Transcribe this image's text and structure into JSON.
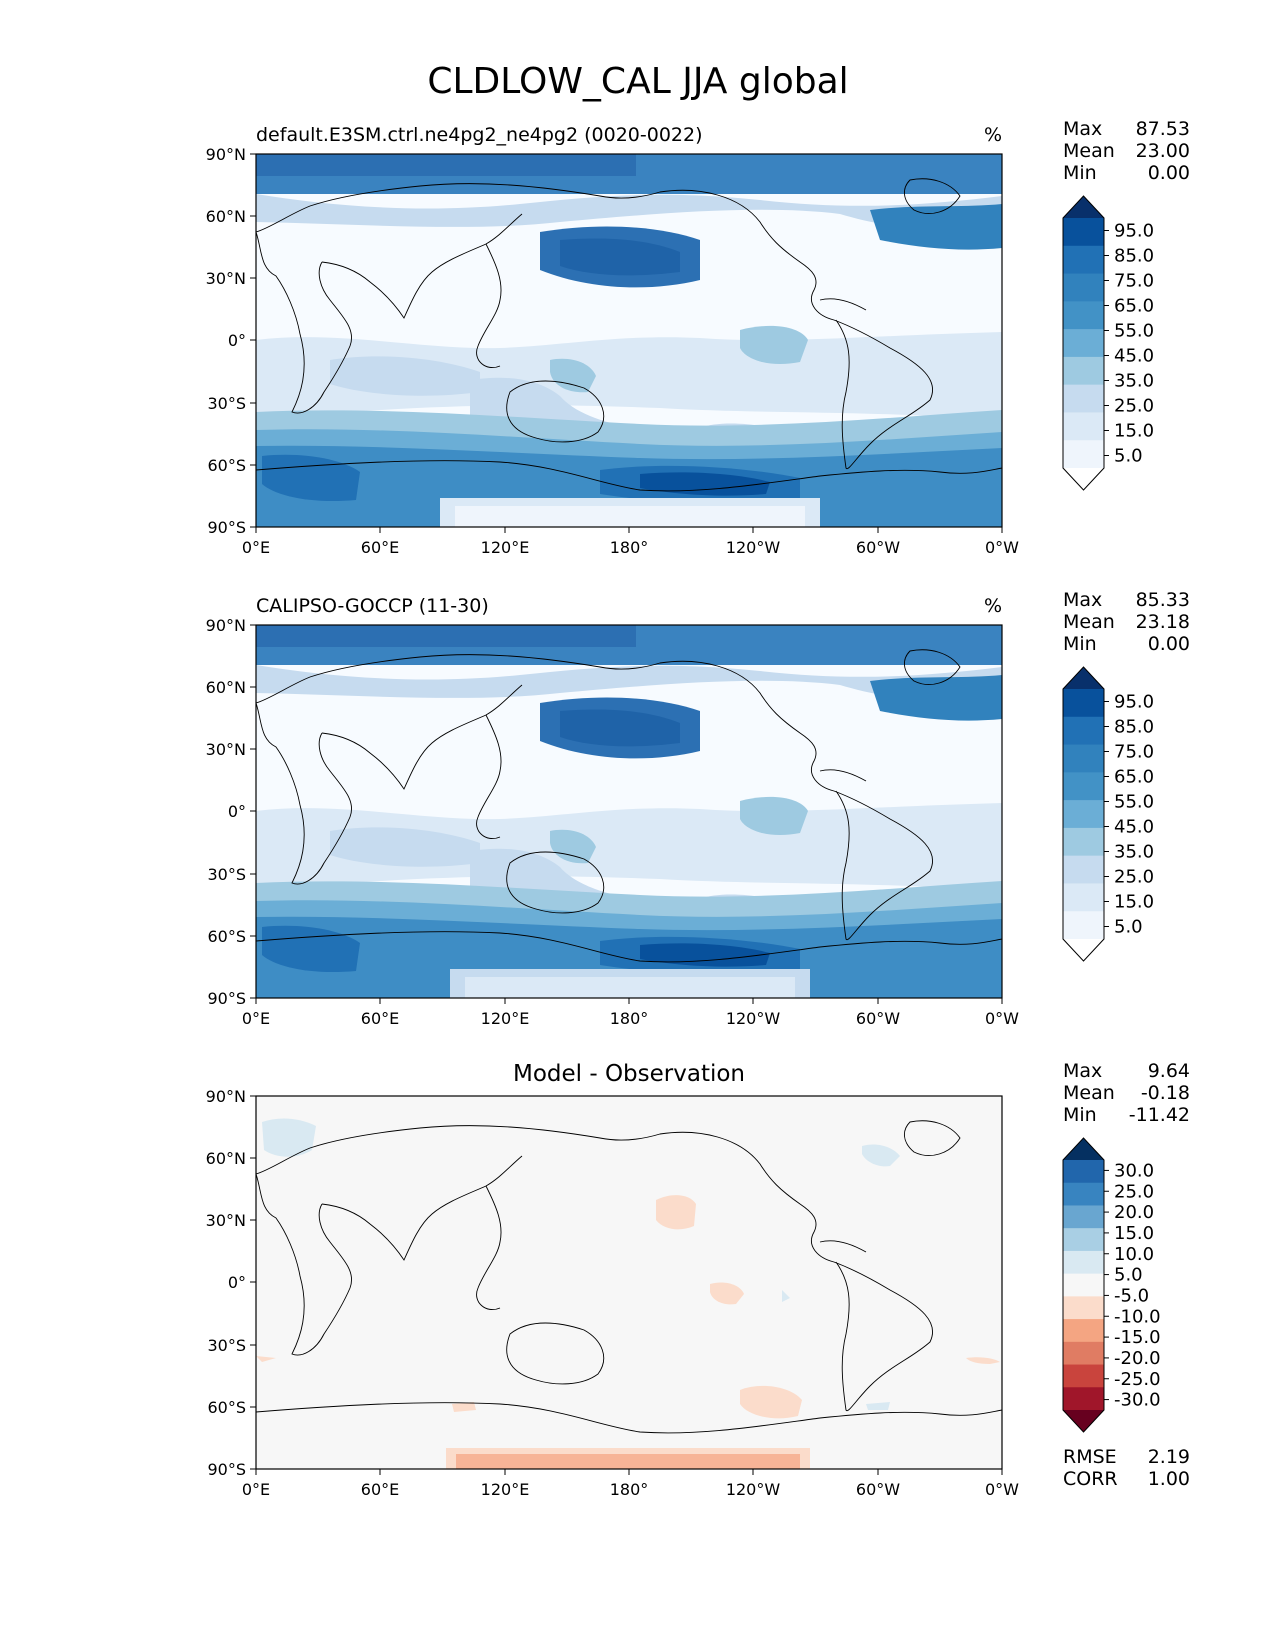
{
  "title": "CLDLOW_CAL JJA global",
  "lat_ticks": [
    "90°N",
    "60°N",
    "30°N",
    "0°",
    "30°S",
    "60°S",
    "90°S"
  ],
  "lon_ticks": [
    "0°E",
    "60°E",
    "120°E",
    "180°",
    "120°W",
    "60°W",
    "0°W"
  ],
  "panels": [
    {
      "title": "default.E3SM.ctrl.ne4pg2_ne4pg2 (0020-0022)",
      "units": "%",
      "stats": [
        {
          "label": "Max",
          "value": "87.53"
        },
        {
          "label": "Mean",
          "value": "23.00"
        },
        {
          "label": "Min",
          "value": "0.00"
        }
      ],
      "colorbar": {
        "labels": [
          "95.0",
          "85.0",
          "75.0",
          "65.0",
          "55.0",
          "45.0",
          "35.0",
          "25.0",
          "15.0",
          "5.0"
        ],
        "colors": [
          "#08306b",
          "#08519c",
          "#2171b5",
          "#3182bd",
          "#4292c6",
          "#6baed6",
          "#9ecae1",
          "#c6dbef",
          "#dbe9f6",
          "#eff5fc",
          "#ffffff"
        ]
      }
    },
    {
      "title": "CALIPSO-GOCCP (11-30)",
      "units": "%",
      "stats": [
        {
          "label": "Max",
          "value": "85.33"
        },
        {
          "label": "Mean",
          "value": "23.18"
        },
        {
          "label": "Min",
          "value": "0.00"
        }
      ],
      "colorbar": {
        "labels": [
          "95.0",
          "85.0",
          "75.0",
          "65.0",
          "55.0",
          "45.0",
          "35.0",
          "25.0",
          "15.0",
          "5.0"
        ],
        "colors": [
          "#08306b",
          "#08519c",
          "#2171b5",
          "#3182bd",
          "#4292c6",
          "#6baed6",
          "#9ecae1",
          "#c6dbef",
          "#dbe9f6",
          "#eff5fc",
          "#ffffff"
        ]
      }
    },
    {
      "title": "Model - Observation",
      "units": "",
      "stats": [
        {
          "label": "Max",
          "value": "9.64"
        },
        {
          "label": "Mean",
          "value": "-0.18"
        },
        {
          "label": "Min",
          "value": "-11.42"
        }
      ],
      "colorbar": {
        "labels": [
          "30.0",
          "25.0",
          "20.0",
          "15.0",
          "10.0",
          "5.0",
          "-5.0",
          "-10.0",
          "-15.0",
          "-20.0",
          "-25.0",
          "-30.0"
        ],
        "colors": [
          "#053061",
          "#2166ac",
          "#3884c0",
          "#69a6d0",
          "#a9cfe4",
          "#d9e9f2",
          "#f7f7f7",
          "#fbdccb",
          "#f4a582",
          "#e07c63",
          "#c9443d",
          "#a0162a",
          "#67001f"
        ]
      },
      "extra_stats": [
        {
          "label": "RMSE",
          "value": "2.19"
        },
        {
          "label": "CORR",
          "value": "1.00"
        }
      ]
    }
  ]
}
